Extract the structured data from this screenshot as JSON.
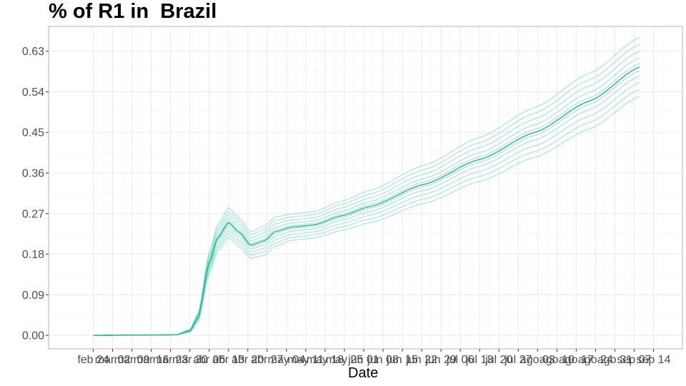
{
  "chart_data": {
    "type": "line",
    "title": "% of R1 in  Brazil",
    "xlabel": "Date",
    "ylabel": "",
    "ylim": [
      -0.03,
      0.685
    ],
    "yticks": [
      0.0,
      0.09,
      0.18,
      0.27,
      0.36,
      0.45,
      0.54,
      0.63
    ],
    "ytick_labels": [
      "0.00",
      "0.09",
      "0.18",
      "0.27",
      "0.36",
      "0.45",
      "0.54",
      "0.63"
    ],
    "xlim_day": [
      -16.2,
      213.5
    ],
    "xticks": [
      {
        "day": 0,
        "label": "feb 24"
      },
      {
        "day": 7,
        "label": "mar 02"
      },
      {
        "day": 14,
        "label": "mar 09"
      },
      {
        "day": 21,
        "label": "mar 16"
      },
      {
        "day": 28,
        "label": "mar 23"
      },
      {
        "day": 35,
        "label": "mar 30"
      },
      {
        "day": 42,
        "label": "abr 06"
      },
      {
        "day": 49,
        "label": "abr 13"
      },
      {
        "day": 56,
        "label": "abr 20"
      },
      {
        "day": 63,
        "label": "abr 27"
      },
      {
        "day": 70,
        "label": "may 04"
      },
      {
        "day": 77,
        "label": "may 11"
      },
      {
        "day": 84,
        "label": "may 18"
      },
      {
        "day": 91,
        "label": "may 25"
      },
      {
        "day": 98,
        "label": "jun 01"
      },
      {
        "day": 105,
        "label": "jun 08"
      },
      {
        "day": 112,
        "label": "jun 15"
      },
      {
        "day": 119,
        "label": "jun 22"
      },
      {
        "day": 126,
        "label": "jun 29"
      },
      {
        "day": 133,
        "label": "jul 06"
      },
      {
        "day": 140,
        "label": "jul 13"
      },
      {
        "day": 147,
        "label": "jul 20"
      },
      {
        "day": 154,
        "label": "jul 27"
      },
      {
        "day": 161,
        "label": "ago 03"
      },
      {
        "day": 168,
        "label": "ago 10"
      },
      {
        "day": 175,
        "label": "ago 17"
      },
      {
        "day": 182,
        "label": "ago 24"
      },
      {
        "day": 189,
        "label": "ago 31"
      },
      {
        "day": 196,
        "label": "sep 07"
      },
      {
        "day": 203,
        "label": "sep 14"
      }
    ],
    "x_start_label": "feb 24",
    "series_day": [
      0,
      30,
      35,
      38,
      42,
      45,
      49,
      53,
      57,
      62,
      66,
      72,
      80,
      90,
      100,
      120,
      140,
      160,
      180,
      198
    ],
    "series_center": [
      0.0,
      0.001,
      0.01,
      0.04,
      0.16,
      0.215,
      0.25,
      0.228,
      0.2,
      0.21,
      0.23,
      0.24,
      0.245,
      0.265,
      0.285,
      0.335,
      0.39,
      0.45,
      0.52,
      0.595
    ],
    "band_offsets": [
      -0.065,
      -0.05,
      -0.035,
      -0.02,
      -0.008,
      0.0,
      0.008,
      0.02,
      0.035,
      0.05,
      0.065
    ],
    "band_scale_by_day": [
      0.0,
      0.0,
      0.05,
      0.15,
      0.35,
      0.45,
      0.5,
      0.5,
      0.45,
      0.5,
      0.5,
      0.45,
      0.45,
      0.5,
      0.55,
      0.65,
      0.75,
      0.85,
      0.95,
      1.0
    ],
    "grid": true,
    "legend": "none",
    "colors": {
      "line": "#1fb390",
      "band": "#5fd4b4",
      "grid": "#ebebeb",
      "border": "#b3b3b3"
    }
  }
}
